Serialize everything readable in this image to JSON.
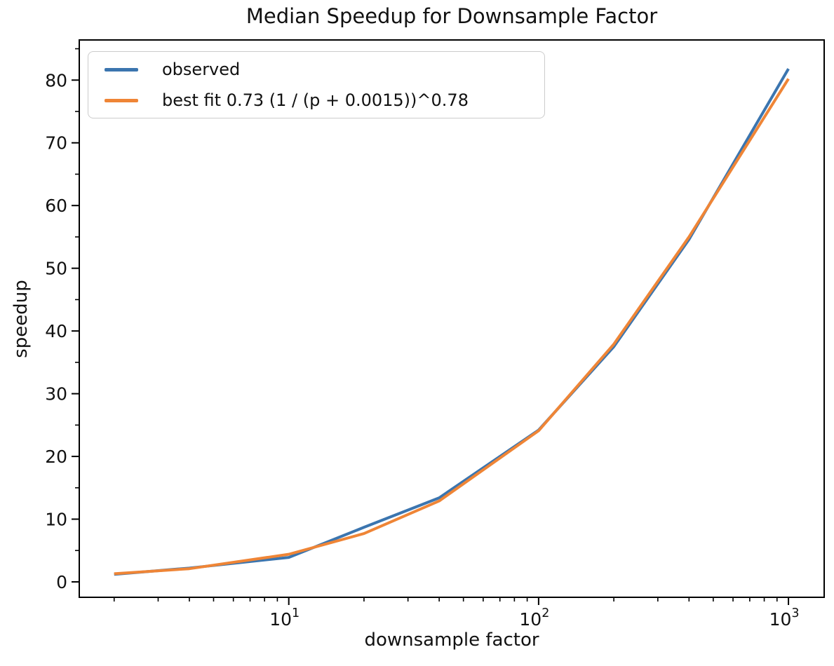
{
  "chart_data": {
    "type": "line",
    "title": "Median Speedup for Downsample Factor",
    "xlabel": "downsample factor",
    "ylabel": "speedup",
    "x_scale": "log10",
    "y_scale": "linear",
    "grid": false,
    "legend_position": "upper left",
    "x": [
      2,
      4,
      10,
      20,
      40,
      100,
      200,
      400,
      1000
    ],
    "series": [
      {
        "name": "observed",
        "color": "#3b75af",
        "values": [
          1.2,
          2.2,
          3.9,
          8.7,
          13.4,
          24.2,
          37.5,
          54.6,
          81.8
        ]
      },
      {
        "name": "best fit 0.73 (1 / (p + 0.0015))^0.78",
        "color": "#ef8536",
        "values": [
          1.3,
          2.1,
          4.4,
          7.7,
          12.9,
          24.1,
          37.9,
          55.0,
          80.2
        ]
      }
    ],
    "xlim": [
      1.45,
      1390
    ],
    "ylim": [
      -2.46,
      86.4
    ],
    "y_major_ticks": [
      0,
      10,
      20,
      30,
      40,
      50,
      60,
      70,
      80
    ],
    "y_minor_ticks": [
      5,
      15,
      25,
      35,
      45,
      55,
      65,
      75,
      85
    ],
    "x_major_ticks": [
      {
        "value": 10,
        "label_base": "10",
        "label_exp": "1"
      },
      {
        "value": 100,
        "label_base": "10",
        "label_exp": "2"
      },
      {
        "value": 1000,
        "label_base": "10",
        "label_exp": "3"
      }
    ],
    "x_minor_ticks": [
      2,
      3,
      4,
      5,
      6,
      7,
      8,
      9,
      20,
      30,
      40,
      50,
      60,
      70,
      80,
      90,
      200,
      300,
      400,
      500,
      600,
      700,
      800,
      900
    ],
    "axis_color": "#000000",
    "text_color": "#111111"
  }
}
